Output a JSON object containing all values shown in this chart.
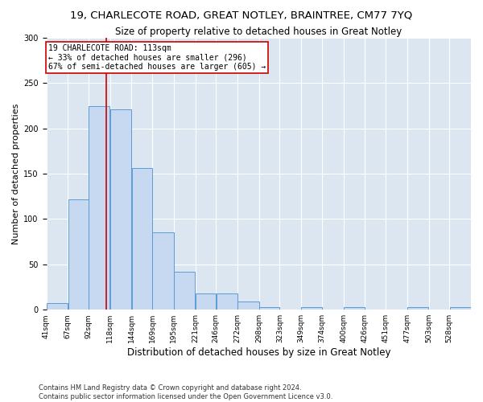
{
  "title1": "19, CHARLECOTE ROAD, GREAT NOTLEY, BRAINTREE, CM77 7YQ",
  "title2": "Size of property relative to detached houses in Great Notley",
  "xlabel": "Distribution of detached houses by size in Great Notley",
  "ylabel": "Number of detached properties",
  "footnote1": "Contains HM Land Registry data © Crown copyright and database right 2024.",
  "footnote2": "Contains public sector information licensed under the Open Government Licence v3.0.",
  "annotation_line1": "19 CHARLECOTE ROAD: 113sqm",
  "annotation_line2": "← 33% of detached houses are smaller (296)",
  "annotation_line3": "67% of semi-detached houses are larger (605) →",
  "bar_edges": [
    41,
    67,
    92,
    118,
    144,
    169,
    195,
    221,
    246,
    272,
    298,
    323,
    349,
    374,
    400,
    426,
    451,
    477,
    503,
    528,
    554
  ],
  "bar_heights": [
    7,
    122,
    224,
    221,
    156,
    85,
    42,
    18,
    18,
    9,
    3,
    0,
    3,
    0,
    3,
    0,
    0,
    3,
    0,
    3
  ],
  "bar_color": "#c6d9f0",
  "bar_edge_color": "#5b9bd5",
  "vline_color": "#cc0000",
  "vline_x": 113,
  "annotation_box_color": "#cc0000",
  "background_color": "#dce6f1",
  "ylim": [
    0,
    300
  ],
  "yticks": [
    0,
    50,
    100,
    150,
    200,
    250,
    300
  ],
  "title1_fontsize": 9.5,
  "title2_fontsize": 8.5,
  "ylabel_fontsize": 8,
  "xlabel_fontsize": 8.5,
  "annotation_fontsize": 7,
  "tick_fontsize": 6.5,
  "footnote_fontsize": 6
}
